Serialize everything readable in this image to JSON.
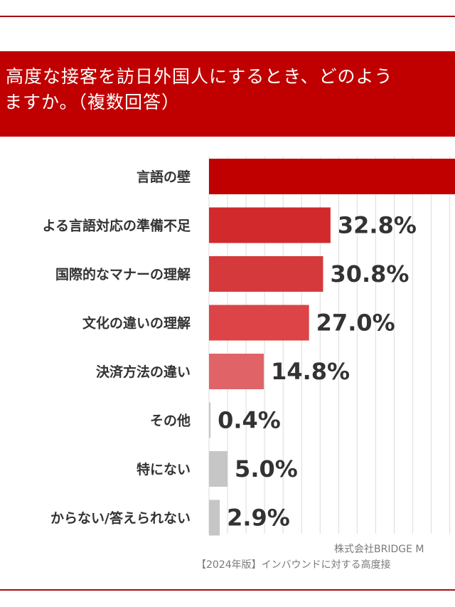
{
  "title": {
    "line1": "高度な接客を訪日外国人にするとき、どのよう",
    "line2": "ますか。（複数回答）"
  },
  "source": {
    "company": "株式会社BRIDGE M",
    "report": "【2024年版】インバウンドに対する高度接"
  },
  "colors": {
    "title_band": "#c00000",
    "gradient": [
      "#c00000",
      "#d22a2c",
      "#d6393b",
      "#dc4447",
      "#e06467",
      "#c6c6c6"
    ]
  },
  "chart_data": {
    "type": "bar",
    "orientation": "horizontal",
    "categories": [
      "言語の壁",
      "よる言語対応の準備不足",
      "国際的なマナーの理解",
      "文化の違いの理解",
      "決済方法の違い",
      "その他",
      "特にない",
      "からない/答えられない"
    ],
    "values": [
      null,
      32.8,
      30.8,
      27.0,
      14.8,
      0.4,
      5.0,
      2.9
    ],
    "value_labels": [
      "",
      "32.8%",
      "30.8%",
      "27.0%",
      "14.8%",
      "0.4%",
      "5.0%",
      "2.9%"
    ],
    "bar_colors": [
      "#c00000",
      "#d22a2c",
      "#d6393b",
      "#dc4447",
      "#e06467",
      "#c6c6c6",
      "#c6c6c6",
      "#c6c6c6"
    ],
    "xlim": [
      0,
      70
    ],
    "grid": true
  }
}
